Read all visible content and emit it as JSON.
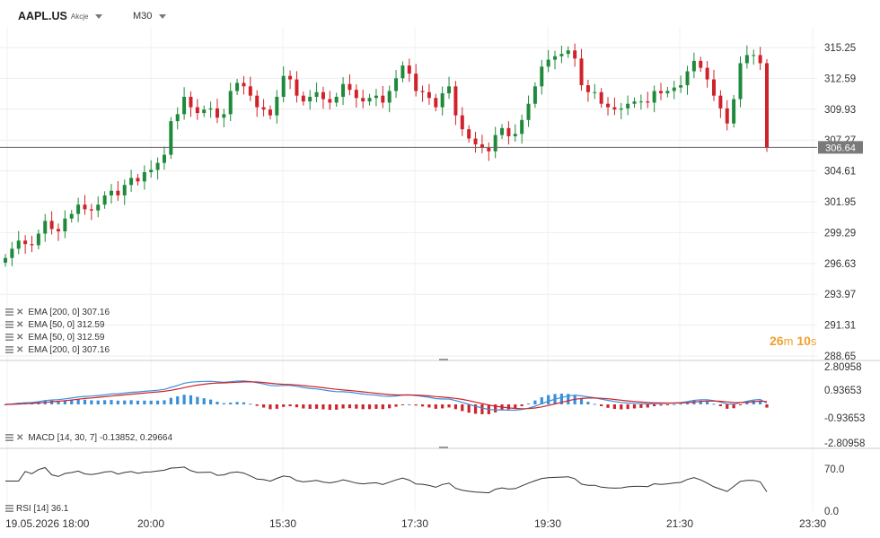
{
  "header": {
    "symbol": "AAPL.US",
    "type_label": "Akcje",
    "timeframe": "M30"
  },
  "price_axis": {
    "ticks": [
      "315.25",
      "312.59",
      "309.93",
      "307.27",
      "304.61",
      "301.95",
      "299.29",
      "296.63",
      "293.97",
      "291.31",
      "288.65"
    ],
    "current_price": "306.64",
    "current_value": 306.64,
    "min": 288.65,
    "max": 317.3
  },
  "countdown": {
    "minutes": "26",
    "m": "m",
    "seconds": "10",
    "s": "s"
  },
  "indicators": [
    {
      "label": "EMA [200, 0] 307.16"
    },
    {
      "label": "EMA [50, 0] 312.59"
    },
    {
      "label": "EMA [50, 0] 312.59"
    },
    {
      "label": "EMA [200, 0] 307.16"
    }
  ],
  "macd": {
    "label": "MACD [14, 30, 7] -0.13852, 0.29664",
    "ticks": [
      "2.80958",
      "0.93653",
      "-0.93653",
      "-2.80958"
    ]
  },
  "rsi": {
    "label": "RSI [14] 36.1",
    "ticks": [
      "70.0",
      "0.0"
    ]
  },
  "time_axis": [
    "19.05.2026 18:00",
    "20:00",
    "15:30",
    "17:30",
    "19:30",
    "21:30",
    "23:30"
  ],
  "colors": {
    "up": "#1f8a3b",
    "down": "#d0222a",
    "macd_line": "#3a8fd8",
    "signal_line": "#d0222a",
    "countdown": "#f0a030"
  },
  "chart_data": {
    "type": "candlestick",
    "series_close": [
      297.1,
      297.9,
      298.6,
      298.3,
      298.2,
      299.2,
      300.3,
      299.6,
      299.4,
      300.5,
      300.9,
      301.7,
      301.3,
      301.2,
      301.7,
      302.5,
      302.9,
      302.5,
      303.4,
      304.0,
      303.7,
      304.5,
      304.7,
      305.3,
      306.0,
      308.9,
      309.5,
      311.0,
      310.1,
      309.6,
      309.9,
      310.0,
      309.2,
      309.5,
      311.5,
      312.2,
      311.9,
      311.1,
      310.1,
      309.9,
      309.4,
      311.0,
      312.8,
      312.5,
      311.1,
      310.6,
      311.0,
      311.4,
      310.8,
      310.5,
      311.0,
      312.1,
      311.6,
      310.9,
      310.6,
      310.9,
      311.1,
      310.5,
      311.5,
      312.6,
      313.7,
      313.0,
      311.5,
      311.4,
      310.9,
      310.1,
      311.3,
      311.9,
      309.4,
      308.2,
      307.4,
      306.9,
      306.6,
      306.3,
      307.7,
      308.3,
      307.6,
      307.8,
      309.0,
      310.4,
      311.9,
      313.6,
      314.2,
      314.5,
      314.7,
      315.0,
      314.3,
      312.0,
      311.4,
      311.4,
      310.4,
      310.1,
      309.9,
      310.0,
      310.4,
      310.6,
      310.6,
      310.5,
      311.5,
      311.3,
      311.5,
      311.8,
      312.0,
      313.2,
      314.1,
      313.5,
      312.5,
      311.1,
      310.0,
      308.7,
      310.8,
      313.9,
      314.6,
      314.6,
      313.9,
      306.6
    ]
  }
}
